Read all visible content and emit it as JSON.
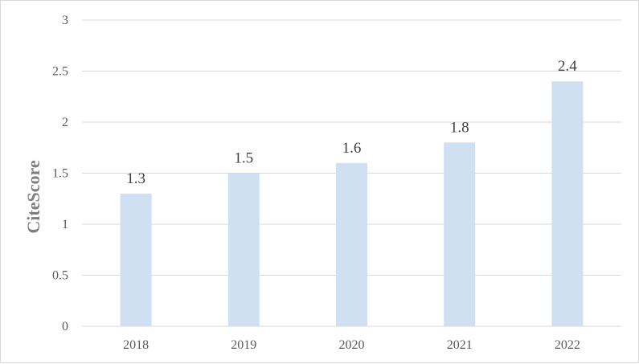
{
  "chart_data": {
    "type": "bar",
    "categories": [
      "2018",
      "2019",
      "2020",
      "2021",
      "2022"
    ],
    "values": [
      1.3,
      1.5,
      1.6,
      1.8,
      2.4
    ],
    "data_labels": [
      "1.3",
      "1.5",
      "1.6",
      "1.8",
      "2.4"
    ],
    "title": "",
    "xlabel": "",
    "ylabel": "CiteScore",
    "ylim": [
      0,
      3
    ],
    "yticks": [
      "0",
      "0.5",
      "1",
      "1.5",
      "2",
      "2.5",
      "3"
    ],
    "grid": true,
    "legend": "none",
    "bar_color": "#d0e0f3",
    "grid_color": "#d9d9d9"
  }
}
